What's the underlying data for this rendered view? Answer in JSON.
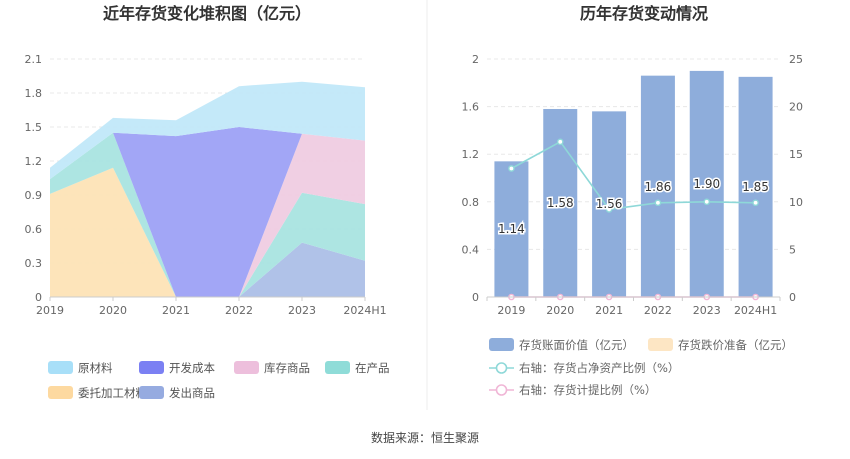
{
  "source": "数据来源：恒生聚源",
  "chart_data": [
    {
      "type": "area",
      "stacked": true,
      "title": "近年存货变化堆积图（亿元）",
      "categories": [
        "2019",
        "2020",
        "2021",
        "2022",
        "2023",
        "2024H1"
      ],
      "ylim": [
        0,
        2.1
      ],
      "yticks": [
        "0",
        "0.3",
        "0.6",
        "0.9",
        "1.2",
        "1.5",
        "1.8",
        "2.1"
      ],
      "series": [
        {
          "name": "发出商品",
          "color": "#a9bde6",
          "values": [
            0,
            0,
            0,
            0,
            0.48,
            0.32
          ]
        },
        {
          "name": "委托加工材料",
          "color": "#fde2b4",
          "values": [
            0.91,
            1.14,
            0,
            0,
            0,
            0
          ]
        },
        {
          "name": "在产品",
          "color": "#a6e3e0",
          "values": [
            0.13,
            0.31,
            0,
            0,
            0.44,
            0.5
          ]
        },
        {
          "name": "库存商品",
          "color": "#efcbe1",
          "values": [
            0,
            0,
            0,
            0,
            0.52,
            0.56
          ]
        },
        {
          "name": "开发成本",
          "color": "#9a9ef5",
          "values": [
            0,
            0,
            1.42,
            1.5,
            0,
            0
          ]
        },
        {
          "name": "原材料",
          "color": "#bfe7f9",
          "values": [
            0.1,
            0.13,
            0.14,
            0.36,
            0.46,
            0.47
          ]
        }
      ],
      "legend_order": [
        {
          "name": "原材料",
          "color": "#a8dff8"
        },
        {
          "name": "开发成本",
          "color": "#7b80f3"
        },
        {
          "name": "库存商品",
          "color": "#edbfdc"
        },
        {
          "name": "在产品",
          "color": "#8fdcd8"
        },
        {
          "name": "委托加工材料",
          "color": "#fdd9a0"
        },
        {
          "name": "发出商品",
          "color": "#96abe0"
        }
      ],
      "legend_placement": "bottom"
    },
    {
      "type": "bar+line",
      "title": "历年存货变动情况",
      "categories": [
        "2019",
        "2020",
        "2021",
        "2022",
        "2023",
        "2024H1"
      ],
      "ylim_left": [
        0,
        2
      ],
      "yticks_left": [
        "0",
        "0.4",
        "0.8",
        "1.2",
        "1.6",
        "2"
      ],
      "ylim_right": [
        0,
        25
      ],
      "yticks_right": [
        "0",
        "5",
        "10",
        "15",
        "20",
        "25"
      ],
      "bars": {
        "name": "存货账面价值（亿元）",
        "color": "#8eaddb",
        "values": [
          1.14,
          1.58,
          1.56,
          1.86,
          1.9,
          1.85
        ],
        "labels": [
          "1.14",
          "1.58",
          "1.56",
          "1.86",
          "1.90",
          "1.85"
        ]
      },
      "bars2": {
        "name": "存货跌价准备（亿元）",
        "color": "#fde6c4",
        "values": [
          0,
          0,
          0,
          0,
          0,
          0
        ]
      },
      "lines": [
        {
          "name": "右轴：存货占净资产比例（%）",
          "color": "#8ed8d8",
          "axis": "right",
          "values": [
            13.5,
            16.3,
            9.2,
            9.9,
            10.0,
            9.9
          ]
        },
        {
          "name": "右轴：存货计提比例（%）",
          "color": "#f0b6d6",
          "axis": "right",
          "values": [
            0,
            0,
            0,
            0,
            0,
            0
          ]
        }
      ],
      "legend_placement": "bottom"
    }
  ]
}
